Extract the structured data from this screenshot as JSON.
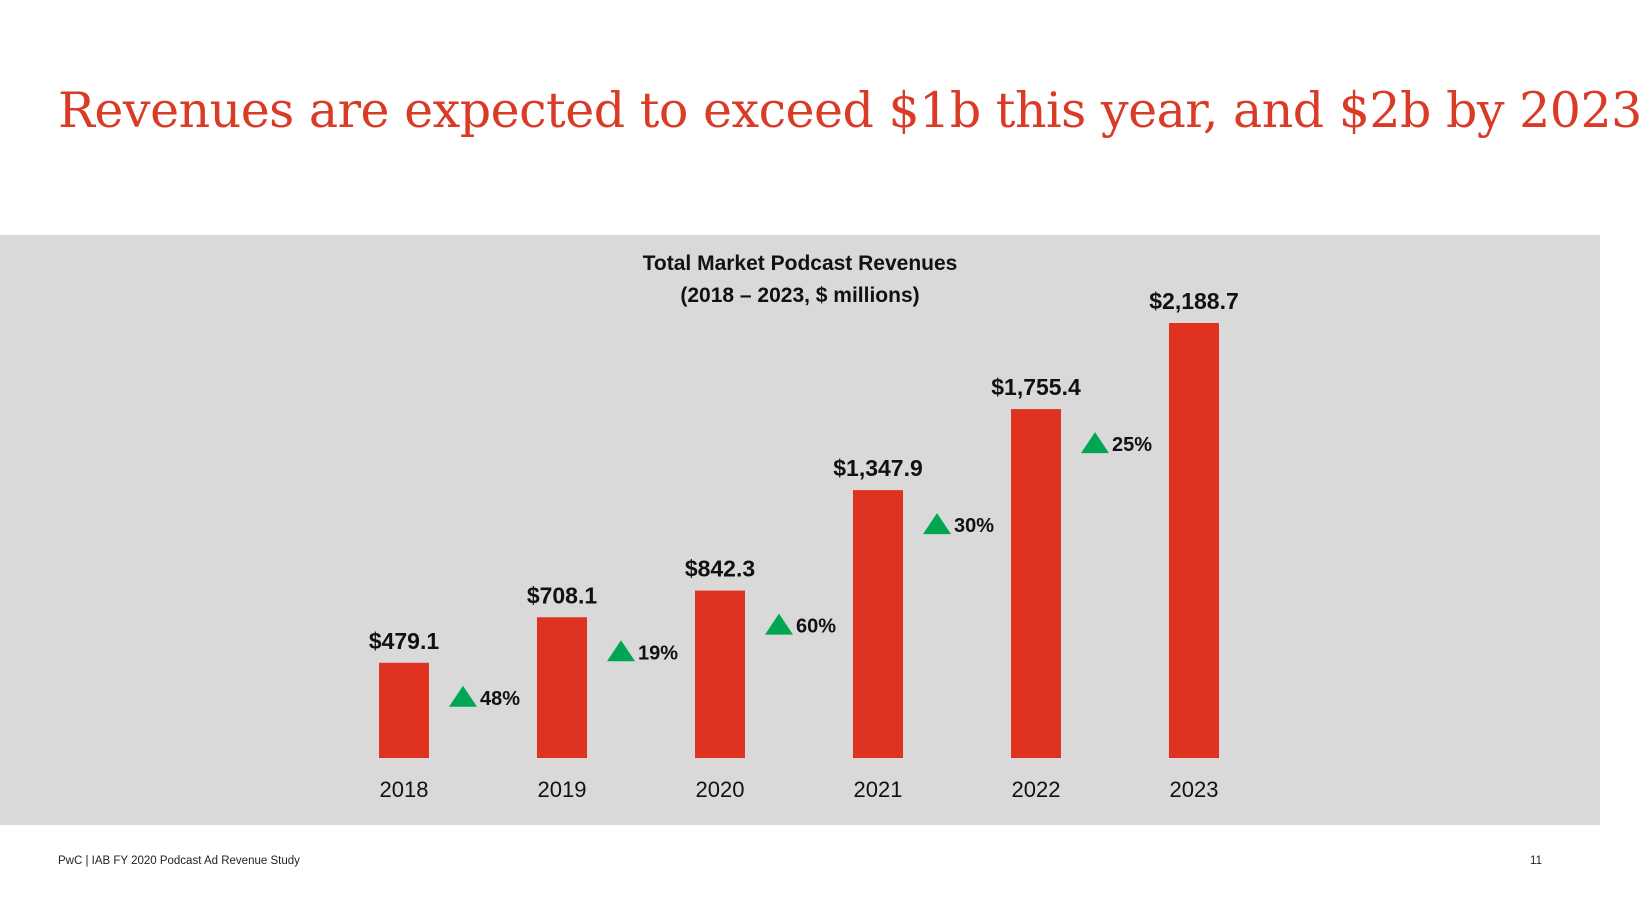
{
  "headline": "Revenues are expected to exceed $1b this year, and $2b by 2023",
  "footer": {
    "source": "PwC  |  IAB FY 2020 Podcast Ad Revenue Study",
    "page_number": "11"
  },
  "colors": {
    "title": "#d93b26",
    "bar": "#e03220",
    "panel": "#d9d9d9",
    "growth_arrow": "#00a651"
  },
  "chart_data": {
    "type": "bar",
    "title": "Total Market Podcast Revenues",
    "subtitle": "(2018 – 2023, $ millions)",
    "xlabel": "",
    "ylabel": "",
    "ylim": [
      0,
      2188.7
    ],
    "grid": false,
    "categories": [
      "2018",
      "2019",
      "2020",
      "2021",
      "2022",
      "2023"
    ],
    "values": [
      479.1,
      708.1,
      842.3,
      1347.9,
      1755.4,
      2188.7
    ],
    "value_labels": [
      "$479.1",
      "$708.1",
      "$842.3",
      "$1,347.9",
      "$1,755.4",
      "$2,188.7"
    ],
    "growth": [
      {
        "from": "2018",
        "to": "2019",
        "label": "48%"
      },
      {
        "from": "2019",
        "to": "2020",
        "label": "19%"
      },
      {
        "from": "2020",
        "to": "2021",
        "label": "60%"
      },
      {
        "from": "2021",
        "to": "2022",
        "label": "30%"
      },
      {
        "from": "2022",
        "to": "2023",
        "label": "25%"
      }
    ]
  }
}
